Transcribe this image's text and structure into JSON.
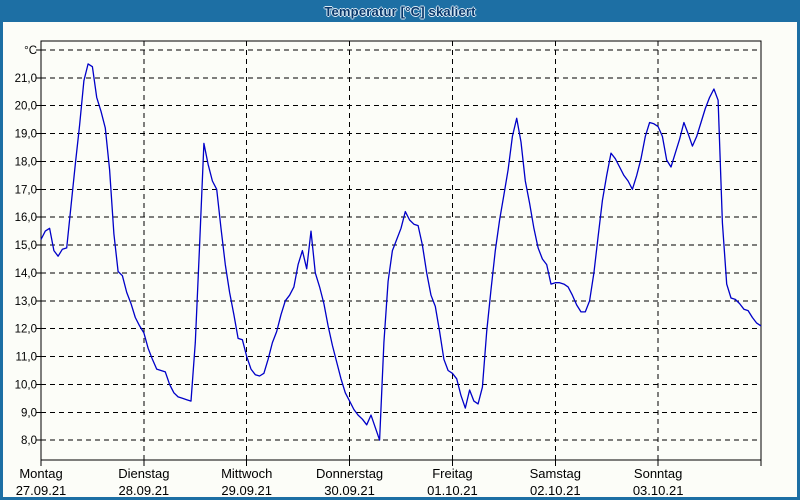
{
  "window": {
    "title": "Temperatur [°C] skaliert",
    "titlebar_color": "#1D6FA4",
    "title_text_color": "#06366B",
    "background_color": "#FCFDF8"
  },
  "chart_data": {
    "type": "line",
    "title": "Temperatur [°C] skaliert",
    "unit_label": "°C",
    "line_color": "#0000C8",
    "grid": "dashed-black",
    "legend_position": "none",
    "ylim": [
      8,
      22
    ],
    "ytick_step": 1.0,
    "ytick_labels": [
      "21,0",
      "20,0",
      "19,0",
      "18,0",
      "17,0",
      "16,0",
      "15,0",
      "14,0",
      "13,0",
      "12,0",
      "11,0",
      "10,0",
      "9,0",
      "8,0"
    ],
    "x_days": [
      {
        "name": "Montag",
        "date": "27.09.21"
      },
      {
        "name": "Dienstag",
        "date": "28.09.21"
      },
      {
        "name": "Mittwoch",
        "date": "29.09.21"
      },
      {
        "name": "Donnerstag",
        "date": "30.09.21"
      },
      {
        "name": "Freitag",
        "date": "01.10.21"
      },
      {
        "name": "Samstag",
        "date": "02.10.21"
      },
      {
        "name": "Sonntag",
        "date": "03.10.21"
      }
    ],
    "points_per_day": 24,
    "series": [
      {
        "name": "Temperatur",
        "values": [
          15.2,
          15.5,
          15.6,
          14.8,
          14.6,
          14.85,
          14.9,
          16.4,
          17.9,
          19.3,
          20.9,
          21.5,
          21.4,
          20.3,
          19.8,
          19.2,
          17.7,
          15.4,
          14.05,
          13.9,
          13.3,
          12.9,
          12.4,
          12.1,
          11.85,
          11.3,
          10.9,
          10.55,
          10.5,
          10.45,
          10.0,
          9.7,
          9.55,
          9.5,
          9.45,
          9.4,
          11.5,
          15.0,
          18.65,
          17.9,
          17.3,
          17.0,
          15.6,
          14.3,
          13.3,
          12.5,
          11.65,
          11.6,
          11.0,
          10.55,
          10.35,
          10.3,
          10.4,
          10.9,
          11.5,
          11.9,
          12.5,
          13.0,
          13.2,
          13.5,
          14.3,
          14.8,
          14.15,
          15.5,
          14.0,
          13.5,
          12.9,
          12.1,
          11.4,
          10.8,
          10.2,
          9.7,
          9.4,
          9.1,
          8.9,
          8.75,
          8.55,
          8.9,
          8.45,
          8.0,
          11.5,
          13.7,
          14.8,
          15.2,
          15.6,
          16.2,
          15.9,
          15.75,
          15.7,
          15.0,
          14.0,
          13.2,
          12.8,
          11.9,
          10.9,
          10.5,
          10.4,
          10.2,
          9.6,
          9.15,
          9.8,
          9.4,
          9.3,
          9.9,
          11.9,
          13.4,
          14.8,
          15.9,
          16.8,
          17.7,
          18.9,
          19.55,
          18.7,
          17.3,
          16.5,
          15.6,
          14.9,
          14.5,
          14.3,
          13.6,
          13.65,
          13.65,
          13.6,
          13.5,
          13.2,
          12.85,
          12.6,
          12.6,
          13.0,
          14.0,
          15.3,
          16.6,
          17.5,
          18.3,
          18.1,
          17.8,
          17.5,
          17.3,
          17.0,
          17.5,
          18.1,
          18.9,
          19.4,
          19.35,
          19.25,
          18.9,
          18.05,
          17.8,
          18.3,
          18.8,
          19.4,
          19.0,
          18.55,
          18.9,
          19.4,
          19.9,
          20.3,
          20.6,
          20.2,
          15.8,
          13.6,
          13.1,
          13.05,
          12.9,
          12.7,
          12.65,
          12.4,
          12.2,
          12.1
        ]
      }
    ]
  }
}
